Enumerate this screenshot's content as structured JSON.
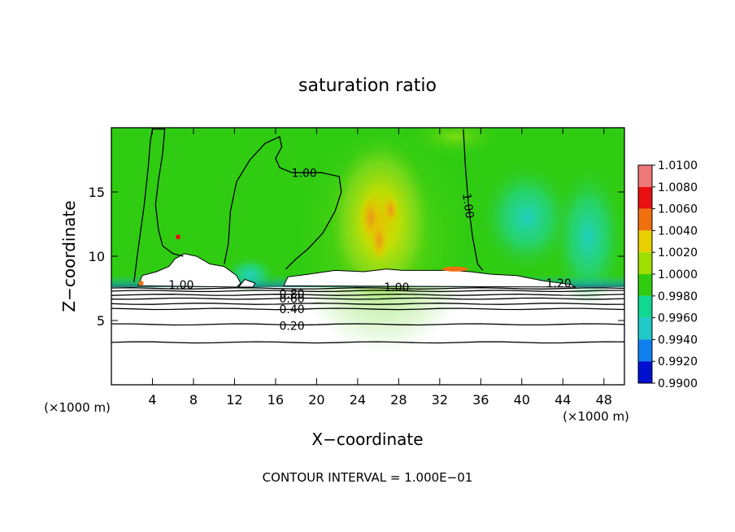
{
  "chart_data": {
    "type": "heatmap",
    "title": "saturation ratio",
    "xlabel": "X−coordinate",
    "ylabel": "Z−coordinate",
    "x_unit_left": "(×1000 m)",
    "x_unit_right": "(×1000 m)",
    "xlim": [
      0,
      50
    ],
    "ylim": [
      0,
      20
    ],
    "x_ticks": [
      4,
      8,
      12,
      16,
      20,
      24,
      28,
      32,
      36,
      40,
      44,
      48
    ],
    "y_ticks": [
      5,
      10,
      15
    ],
    "colorbar": {
      "levels": [
        "1.0100",
        "1.0080",
        "1.0060",
        "1.0040",
        "1.0020",
        "1.0000",
        "0.9980",
        "0.9960",
        "0.9940",
        "0.9920",
        "0.9900"
      ],
      "colors": [
        "#f07878",
        "#e81010",
        "#f07010",
        "#e8d000",
        "#a0e000",
        "#30cc10",
        "#10d890",
        "#20c8c8",
        "#1080f0",
        "#0010d0",
        "#500090"
      ]
    },
    "contour_labels": [
      {
        "text": "1.00",
        "x": 18.8,
        "z": 16.5
      },
      {
        "text": "1.00",
        "x": 34.4,
        "z": 14.2
      },
      {
        "text": "1.00",
        "x": 6.8,
        "z": 7.8
      },
      {
        "text": "1.00",
        "x": 27.8,
        "z": 7.6
      },
      {
        "text": "1.20",
        "x": 43.6,
        "z": 7.9
      },
      {
        "text": "0.80",
        "x": 17.6,
        "z": 7.1
      },
      {
        "text": "0.60",
        "x": 17.6,
        "z": 6.7
      },
      {
        "text": "0.40",
        "x": 17.6,
        "z": 5.9
      },
      {
        "text": "0.20",
        "x": 17.6,
        "z": 4.6
      }
    ],
    "footer": "CONTOUR INTERVAL = 1.000E−01",
    "grid": false
  }
}
